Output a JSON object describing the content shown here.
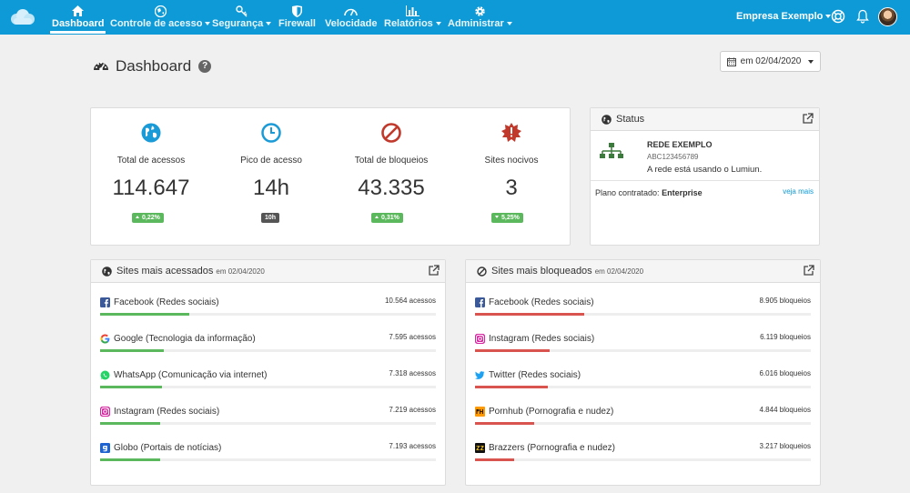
{
  "nav": {
    "items": [
      {
        "label": "Dashboard",
        "icon": "home-icon",
        "active": true
      },
      {
        "label": "Controle de acesso",
        "icon": "globe-icon",
        "caret": true
      },
      {
        "label": "Segurança",
        "icon": "key-icon",
        "caret": true
      },
      {
        "label": "Firewall",
        "icon": "shield-icon"
      },
      {
        "label": "Velocidade",
        "icon": "speedometer-icon"
      },
      {
        "label": "Relatórios",
        "icon": "bar-chart-icon",
        "caret": true
      },
      {
        "label": "Administrar",
        "icon": "gear-icon",
        "caret": true
      }
    ],
    "company": "Empresa Exemplo"
  },
  "header": {
    "title": "Dashboard",
    "help": "?",
    "date_label": "em 02/04/2020"
  },
  "stats": [
    {
      "label": "Total de acessos",
      "value": "114.647",
      "badge": "0,22%",
      "trend": "up",
      "icon": "globe-icon",
      "color": "#1a9ad6"
    },
    {
      "label": "Pico de acesso",
      "value": "14h",
      "badge": "10h",
      "trend": "none",
      "icon": "clock-icon",
      "color": "#1a9ad6"
    },
    {
      "label": "Total de bloqueios",
      "value": "43.335",
      "badge": "0,31%",
      "trend": "up",
      "icon": "ban-icon",
      "color": "#c0392b"
    },
    {
      "label": "Sites nocivos",
      "value": "3",
      "badge": "5,25%",
      "trend": "down",
      "icon": "alert-burst-icon",
      "color": "#c0392b"
    }
  ],
  "status": {
    "title": "Status",
    "network_name": "REDE EXEMPLO",
    "network_id": "ABC123456789",
    "message": "A rede está usando o Lumiun.",
    "plan_label": "Plano contratado:",
    "plan_value": "Enterprise",
    "more_link": "veja mais"
  },
  "most_accessed": {
    "title": "Sites mais acessados",
    "subtitle": "em 02/04/2020",
    "items": [
      {
        "name": "Facebook (Redes sociais)",
        "count": "10.564 acessos",
        "fraction": 0.265,
        "icon": "facebook-icon"
      },
      {
        "name": "Google (Tecnologia da informação)",
        "count": "7.595 acessos",
        "fraction": 0.19,
        "icon": "google-icon"
      },
      {
        "name": "WhatsApp (Comunicação via internet)",
        "count": "7.318 acessos",
        "fraction": 0.183,
        "icon": "whatsapp-icon"
      },
      {
        "name": "Instagram (Redes sociais)",
        "count": "7.219 acessos",
        "fraction": 0.18,
        "icon": "instagram-icon"
      },
      {
        "name": "Globo (Portais de notícias)",
        "count": "7.193 acessos",
        "fraction": 0.18,
        "icon": "globo-icon"
      }
    ]
  },
  "most_blocked": {
    "title": "Sites mais bloqueados",
    "subtitle": "em 02/04/2020",
    "items": [
      {
        "name": "Facebook (Redes sociais)",
        "count": "8.905 bloqueios",
        "fraction": 0.325,
        "icon": "facebook-icon"
      },
      {
        "name": "Instagram (Redes sociais)",
        "count": "6.119 bloqueios",
        "fraction": 0.222,
        "icon": "instagram-icon"
      },
      {
        "name": "Twitter (Redes sociais)",
        "count": "6.016 bloqueios",
        "fraction": 0.218,
        "icon": "twitter-icon"
      },
      {
        "name": "Pornhub (Pornografia e nudez)",
        "count": "4.844 bloqueios",
        "fraction": 0.176,
        "icon": "pornhub-icon"
      },
      {
        "name": "Brazzers (Pornografia e nudez)",
        "count": "3.217 bloqueios",
        "fraction": 0.117,
        "icon": "brazzers-icon"
      }
    ]
  }
}
